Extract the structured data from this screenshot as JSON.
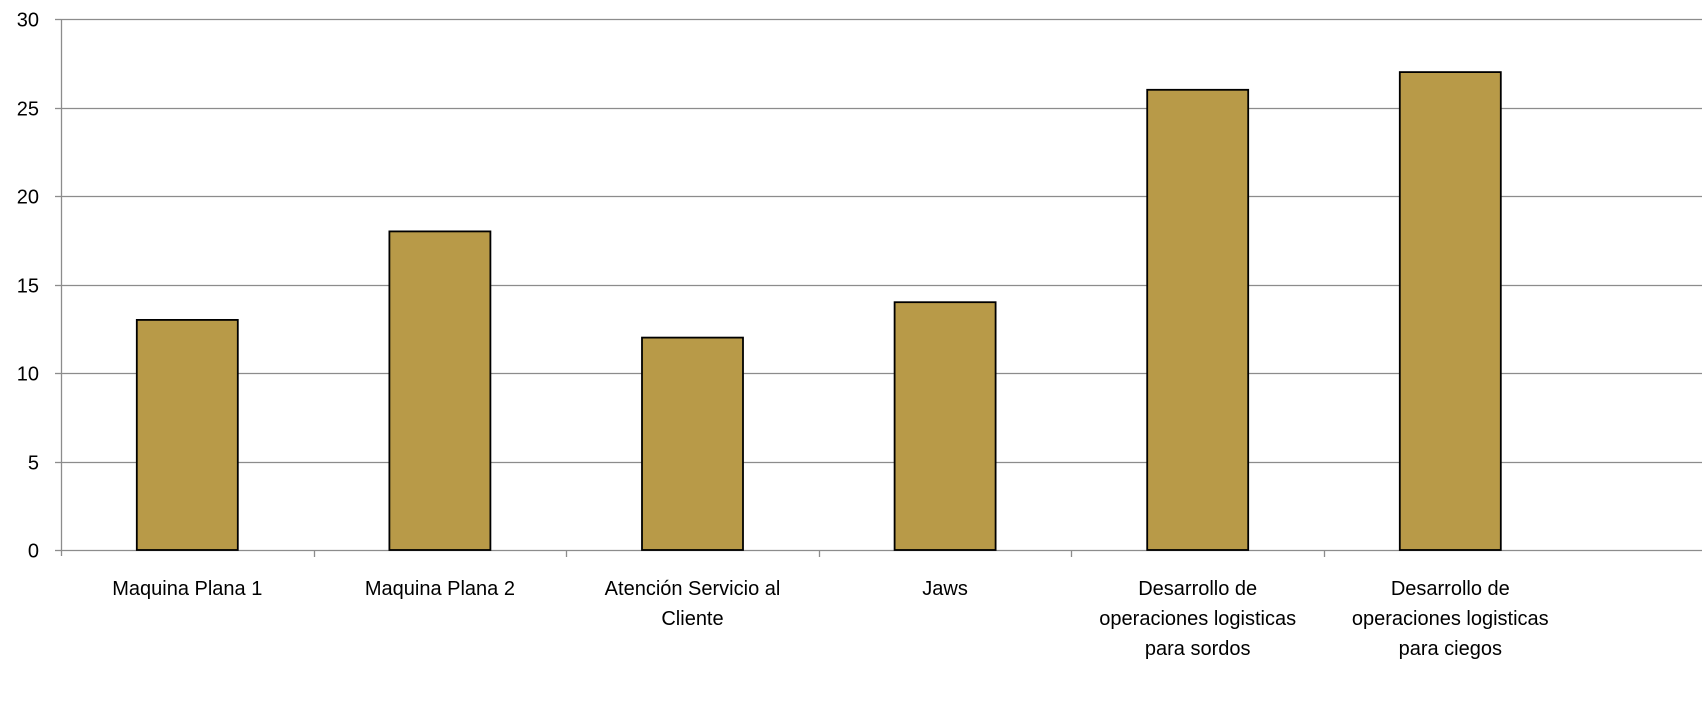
{
  "chart_data": {
    "type": "bar",
    "categories": [
      [
        "Maquina Plana 1"
      ],
      [
        "Maquina Plana 2"
      ],
      [
        "Atención Servicio al",
        "Cliente"
      ],
      [
        "Jaws"
      ],
      [
        "Desarrollo de",
        "operaciones logisticas",
        "para sordos"
      ],
      [
        "Desarrollo de",
        "operaciones logisticas",
        "para ciegos"
      ]
    ],
    "values": [
      13,
      18,
      12,
      14,
      26,
      27
    ],
    "ylim": [
      0,
      30
    ],
    "yticks": [
      0,
      5,
      10,
      15,
      20,
      25,
      30
    ],
    "grid": true,
    "legend": "none",
    "bar_color": "#B89A48",
    "bar_edge_color": "#000000",
    "grid_color": "#8C8C8C"
  }
}
